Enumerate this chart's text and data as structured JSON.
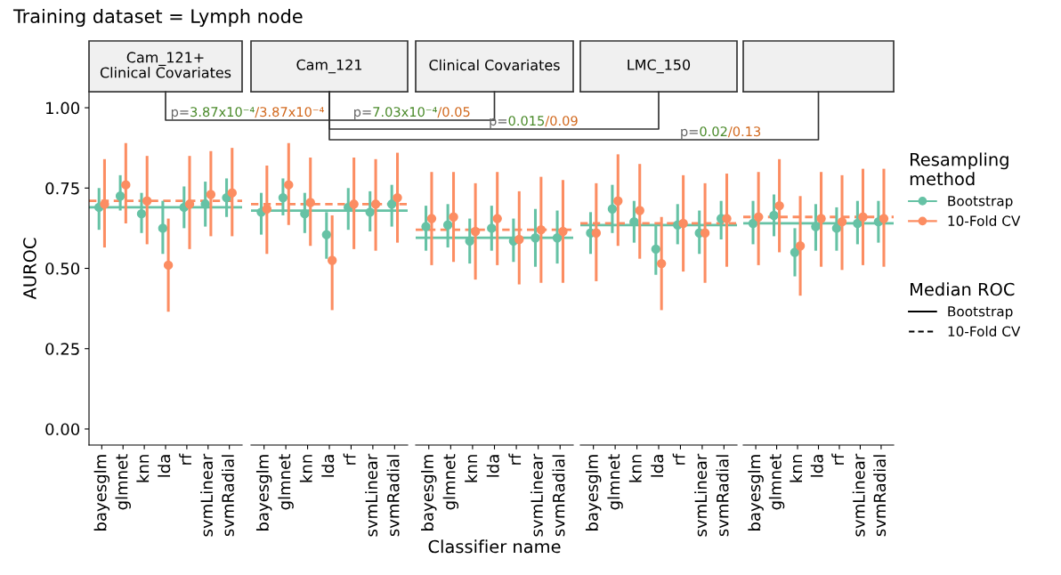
{
  "chart_data": [
    {
      "type": "scatter",
      "title": "Training dataset = Lymph node",
      "subtitle": "Cam_121+\nClinical Covariates",
      "ylabel": "AUROC",
      "categories": [
        "bayesglm",
        "glmnet",
        "knn",
        "lda",
        "rf",
        "svmLinear",
        "svmRadial"
      ],
      "ylim": [
        -0.05,
        1.05
      ],
      "yticks": [
        {
          "value": 0,
          "label": "0.00"
        },
        {
          "value": 0.25,
          "label": "0.25"
        },
        {
          "value": 0.5,
          "label": "0.50"
        },
        {
          "value": 0.75,
          "label": "0.75"
        },
        {
          "value": 1,
          "label": "1.00"
        }
      ],
      "grid": false,
      "marker": "circle",
      "series": [
        {
          "color": "#66c2a5",
          "values": [
            0.69,
            0.725,
            0.67,
            0.625,
            0.69,
            0.7,
            0.72
          ],
          "errors": [
            [
              0.62,
              0.75
            ],
            [
              0.68,
              0.79
            ],
            [
              0.61,
              0.735
            ],
            [
              0.545,
              0.71
            ],
            [
              0.625,
              0.755
            ],
            [
              0.63,
              0.77
            ],
            [
              0.66,
              0.78
            ]
          ]
        },
        {
          "color": "#fc8d62",
          "values": [
            0.7,
            0.76,
            0.71,
            0.51,
            0.7,
            0.73,
            0.735
          ],
          "errors": [
            [
              0.565,
              0.84
            ],
            [
              0.64,
              0.89
            ],
            [
              0.575,
              0.85
            ],
            [
              0.365,
              0.655
            ],
            [
              0.56,
              0.85
            ],
            [
              0.6,
              0.865
            ],
            [
              0.6,
              0.875
            ]
          ]
        }
      ],
      "ref_lines": [
        {
          "axis": "y",
          "value": 0.69,
          "color": "#66c2a5",
          "line_style": "solid"
        },
        {
          "axis": "y",
          "value": 0.71,
          "color": "#fc8d62",
          "line_style": "dashed"
        }
      ],
      "annotations": [
        "p=3.87x10⁻⁴/3.87x10⁻⁴",
        "p=7.03x10⁻⁴/0.05",
        "p=0.015/0.09",
        "p=0.02/0.13"
      ]
    },
    {
      "type": "scatter",
      "subtitle": "Cam_121",
      "categories": [
        "bayesglm",
        "glmnet",
        "knn",
        "lda",
        "rf",
        "svmLinear",
        "svmRadial"
      ],
      "ylim": [
        -0.05,
        1.05
      ],
      "tick_labels": "x",
      "grid": false,
      "marker": "circle",
      "series": [
        {
          "color": "#66c2a5",
          "values": [
            0.675,
            0.72,
            0.67,
            0.605,
            0.69,
            0.675,
            0.7
          ],
          "errors": [
            [
              0.605,
              0.735
            ],
            [
              0.665,
              0.78
            ],
            [
              0.61,
              0.735
            ],
            [
              0.53,
              0.675
            ],
            [
              0.62,
              0.75
            ],
            [
              0.615,
              0.74
            ],
            [
              0.63,
              0.76
            ]
          ]
        },
        {
          "color": "#fc8d62",
          "values": [
            0.685,
            0.76,
            0.705,
            0.525,
            0.7,
            0.7,
            0.72
          ],
          "errors": [
            [
              0.545,
              0.82
            ],
            [
              0.635,
              0.89
            ],
            [
              0.57,
              0.845
            ],
            [
              0.37,
              0.665
            ],
            [
              0.56,
              0.845
            ],
            [
              0.555,
              0.84
            ],
            [
              0.58,
              0.86
            ]
          ]
        }
      ],
      "ref_lines": [
        {
          "axis": "y",
          "value": 0.68,
          "color": "#66c2a5",
          "line_style": "solid"
        },
        {
          "axis": "y",
          "value": 0.7,
          "color": "#fc8d62",
          "line_style": "dashed"
        }
      ]
    },
    {
      "type": "scatter",
      "subtitle": "Clinical Covariates",
      "xlabel": "Classifier name",
      "categories": [
        "bayesglm",
        "glmnet",
        "knn",
        "lda",
        "rf",
        "svmLinear",
        "svmRadial"
      ],
      "ylim": [
        -0.05,
        1.05
      ],
      "tick_labels": "x",
      "grid": false,
      "marker": "circle",
      "series": [
        {
          "color": "#66c2a5",
          "values": [
            0.63,
            0.635,
            0.585,
            0.625,
            0.585,
            0.595,
            0.595
          ],
          "errors": [
            [
              0.555,
              0.695
            ],
            [
              0.565,
              0.7
            ],
            [
              0.515,
              0.655
            ],
            [
              0.555,
              0.695
            ],
            [
              0.52,
              0.655
            ],
            [
              0.505,
              0.685
            ],
            [
              0.515,
              0.68
            ]
          ]
        },
        {
          "color": "#fc8d62",
          "values": [
            0.655,
            0.66,
            0.615,
            0.655,
            0.59,
            0.62,
            0.615
          ],
          "errors": [
            [
              0.51,
              0.8
            ],
            [
              0.52,
              0.8
            ],
            [
              0.465,
              0.765
            ],
            [
              0.51,
              0.8
            ],
            [
              0.45,
              0.74
            ],
            [
              0.455,
              0.785
            ],
            [
              0.455,
              0.775
            ]
          ]
        }
      ],
      "ref_lines": [
        {
          "axis": "y",
          "value": 0.595,
          "color": "#66c2a5",
          "line_style": "solid"
        },
        {
          "axis": "y",
          "value": 0.62,
          "color": "#fc8d62",
          "line_style": "dashed"
        }
      ]
    },
    {
      "type": "scatter",
      "subtitle": "LMC_150",
      "categories": [
        "bayesglm",
        "glmnet",
        "knn",
        "lda",
        "rf",
        "svmLinear",
        "svmRadial"
      ],
      "ylim": [
        -0.05,
        1.05
      ],
      "tick_labels": "x",
      "grid": false,
      "marker": "circle",
      "series": [
        {
          "color": "#66c2a5",
          "values": [
            0.61,
            0.685,
            0.645,
            0.56,
            0.635,
            0.61,
            0.655
          ],
          "errors": [
            [
              0.545,
              0.675
            ],
            [
              0.61,
              0.76
            ],
            [
              0.58,
              0.71
            ],
            [
              0.48,
              0.635
            ],
            [
              0.575,
              0.7
            ],
            [
              0.545,
              0.68
            ],
            [
              0.59,
              0.71
            ]
          ]
        },
        {
          "color": "#fc8d62",
          "values": [
            0.61,
            0.71,
            0.68,
            0.515,
            0.64,
            0.61,
            0.655
          ],
          "errors": [
            [
              0.46,
              0.765
            ],
            [
              0.57,
              0.855
            ],
            [
              0.53,
              0.825
            ],
            [
              0.37,
              0.66
            ],
            [
              0.49,
              0.79
            ],
            [
              0.455,
              0.765
            ],
            [
              0.505,
              0.795
            ]
          ]
        }
      ],
      "ref_lines": [
        {
          "axis": "y",
          "value": 0.635,
          "color": "#66c2a5",
          "line_style": "solid"
        },
        {
          "axis": "y",
          "value": 0.64,
          "color": "#fc8d62",
          "line_style": "dashed"
        }
      ]
    },
    {
      "type": "scatter",
      "subtitle": null,
      "categories": [
        "bayesglm",
        "glmnet",
        "knn",
        "lda",
        "rf",
        "svmLinear",
        "svmRadial"
      ],
      "ylim": [
        -0.05,
        1.05
      ],
      "tick_labels": "x",
      "grid": false,
      "marker": "circle",
      "legend": "right",
      "legend_title": "Resampling\nmethod",
      "series": [
        {
          "name": "Bootstrap",
          "color": "#66c2a5",
          "values": [
            0.64,
            0.665,
            0.55,
            0.63,
            0.625,
            0.64,
            0.645
          ],
          "errors": [
            [
              0.575,
              0.71
            ],
            [
              0.6,
              0.73
            ],
            [
              0.475,
              0.625
            ],
            [
              0.555,
              0.7
            ],
            [
              0.555,
              0.69
            ],
            [
              0.575,
              0.71
            ],
            [
              0.58,
              0.71
            ]
          ]
        },
        {
          "name": "10-Fold CV",
          "color": "#fc8d62",
          "values": [
            0.66,
            0.695,
            0.57,
            0.655,
            0.645,
            0.66,
            0.655
          ],
          "errors": [
            [
              0.51,
              0.8
            ],
            [
              0.55,
              0.84
            ],
            [
              0.415,
              0.725
            ],
            [
              0.505,
              0.8
            ],
            [
              0.495,
              0.79
            ],
            [
              0.51,
              0.81
            ],
            [
              0.505,
              0.81
            ]
          ]
        }
      ],
      "ref_lines": [
        {
          "axis": "y",
          "value": 0.64,
          "color": "#66c2a5",
          "line_style": "solid"
        },
        {
          "axis": "y",
          "value": 0.66,
          "color": "#fc8d62",
          "line_style": "dashed"
        }
      ],
      "annotations": [
        "Median ROC",
        "Bootstrap",
        "10-Fold CV"
      ]
    }
  ]
}
